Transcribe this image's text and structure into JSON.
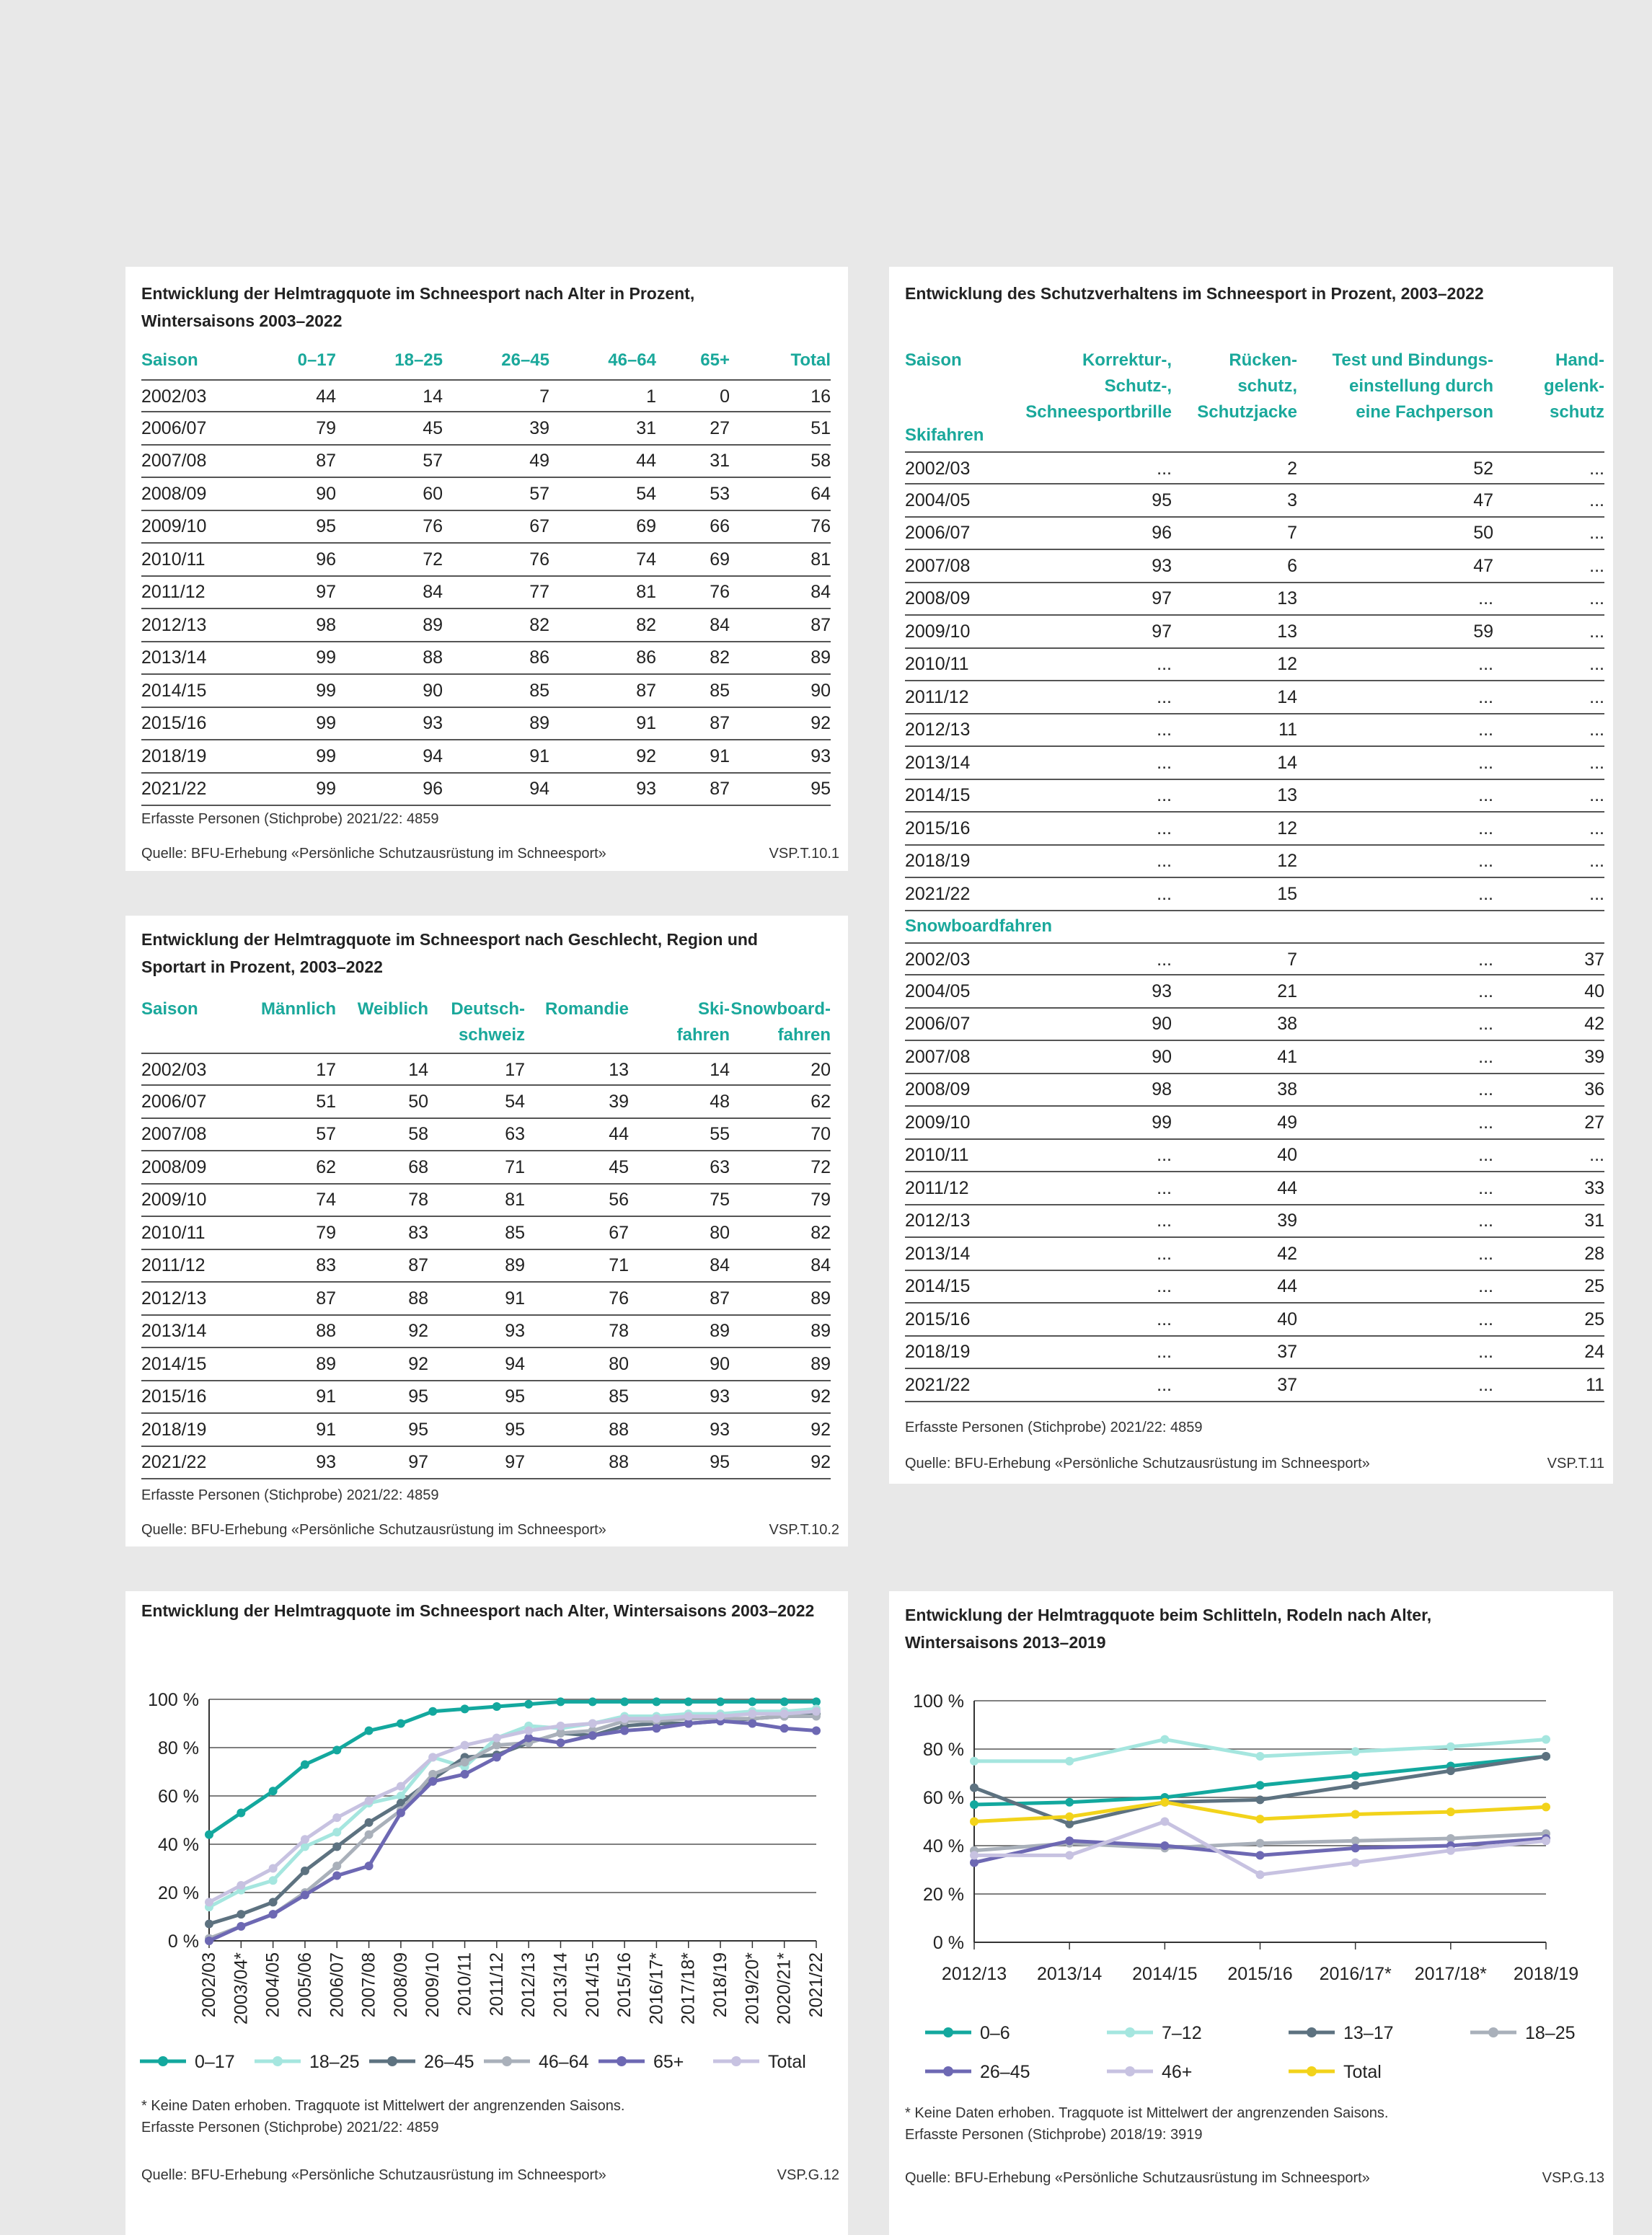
{
  "t101": {
    "title1": "Entwicklung der Helmtragquote im Schneesport nach Alter in Prozent,",
    "title2": "Wintersaisons 2003–2022",
    "headers": [
      "Saison",
      "0–17",
      "18–25",
      "26–45",
      "46–64",
      "65+",
      "Total"
    ],
    "rows": [
      [
        "2002/03",
        "44",
        "14",
        "7",
        "1",
        "0",
        "16"
      ],
      [
        "2006/07",
        "79",
        "45",
        "39",
        "31",
        "27",
        "51"
      ],
      [
        "2007/08",
        "87",
        "57",
        "49",
        "44",
        "31",
        "58"
      ],
      [
        "2008/09",
        "90",
        "60",
        "57",
        "54",
        "53",
        "64"
      ],
      [
        "2009/10",
        "95",
        "76",
        "67",
        "69",
        "66",
        "76"
      ],
      [
        "2010/11",
        "96",
        "72",
        "76",
        "74",
        "69",
        "81"
      ],
      [
        "2011/12",
        "97",
        "84",
        "77",
        "81",
        "76",
        "84"
      ],
      [
        "2012/13",
        "98",
        "89",
        "82",
        "82",
        "84",
        "87"
      ],
      [
        "2013/14",
        "99",
        "88",
        "86",
        "86",
        "82",
        "89"
      ],
      [
        "2014/15",
        "99",
        "90",
        "85",
        "87",
        "85",
        "90"
      ],
      [
        "2015/16",
        "99",
        "93",
        "89",
        "91",
        "87",
        "92"
      ],
      [
        "2018/19",
        "99",
        "94",
        "91",
        "92",
        "91",
        "93"
      ],
      [
        "2021/22",
        "99",
        "96",
        "94",
        "93",
        "87",
        "95"
      ]
    ],
    "note": "Erfasste Personen (Stichprobe) 2021/22: 4859",
    "source": "Quelle: BFU-Erhebung «Persönliche Schutzausrüstung im Schneesport»",
    "code": "VSP.T.10.1"
  },
  "t102": {
    "title1": "Entwicklung der Helmtragquote im Schneesport nach Geschlecht, Region und",
    "title2": "Sportart in Prozent, 2003–2022",
    "headers": [
      [
        "Saison"
      ],
      [
        "Männlich"
      ],
      [
        "Weiblich"
      ],
      [
        "Deutsch-",
        "schweiz"
      ],
      [
        "Romandie"
      ],
      [
        "Ski-",
        "fahren"
      ],
      [
        "Snowboard-",
        "fahren"
      ]
    ],
    "rows": [
      [
        "2002/03",
        "17",
        "14",
        "17",
        "13",
        "14",
        "20"
      ],
      [
        "2006/07",
        "51",
        "50",
        "54",
        "39",
        "48",
        "62"
      ],
      [
        "2007/08",
        "57",
        "58",
        "63",
        "44",
        "55",
        "70"
      ],
      [
        "2008/09",
        "62",
        "68",
        "71",
        "45",
        "63",
        "72"
      ],
      [
        "2009/10",
        "74",
        "78",
        "81",
        "56",
        "75",
        "79"
      ],
      [
        "2010/11",
        "79",
        "83",
        "85",
        "67",
        "80",
        "82"
      ],
      [
        "2011/12",
        "83",
        "87",
        "89",
        "71",
        "84",
        "84"
      ],
      [
        "2012/13",
        "87",
        "88",
        "91",
        "76",
        "87",
        "89"
      ],
      [
        "2013/14",
        "88",
        "92",
        "93",
        "78",
        "89",
        "89"
      ],
      [
        "2014/15",
        "89",
        "92",
        "94",
        "80",
        "90",
        "89"
      ],
      [
        "2015/16",
        "91",
        "95",
        "95",
        "85",
        "93",
        "92"
      ],
      [
        "2018/19",
        "91",
        "95",
        "95",
        "88",
        "93",
        "92"
      ],
      [
        "2021/22",
        "93",
        "97",
        "97",
        "88",
        "95",
        "92"
      ]
    ],
    "note": "Erfasste Personen (Stichprobe) 2021/22: 4859",
    "source": "Quelle: BFU-Erhebung «Persönliche Schutzausrüstung im Schneesport»",
    "code": "VSP.T.10.2"
  },
  "t11": {
    "title": "Entwicklung des Schutzverhaltens im Schneesport in Prozent, 2003–2022",
    "headers": [
      [
        "Saison"
      ],
      [
        "Korrektur-,",
        "Schutz-,",
        "Schneesportbrille"
      ],
      [
        "Rücken-",
        "schutz,",
        "Schutzjacke"
      ],
      [
        "Test und Bindungs-",
        "einstellung durch",
        "eine Fachperson"
      ],
      [
        "Hand-",
        "gelenk-",
        "schutz"
      ]
    ],
    "ski_label": "Skifahren",
    "ski_rows": [
      [
        "2002/03",
        "...",
        "2",
        "52",
        "..."
      ],
      [
        "2004/05",
        "95",
        "3",
        "47",
        "..."
      ],
      [
        "2006/07",
        "96",
        "7",
        "50",
        "..."
      ],
      [
        "2007/08",
        "93",
        "6",
        "47",
        "..."
      ],
      [
        "2008/09",
        "97",
        "13",
        "...",
        "..."
      ],
      [
        "2009/10",
        "97",
        "13",
        "59",
        "..."
      ],
      [
        "2010/11",
        "...",
        "12",
        "...",
        "..."
      ],
      [
        "2011/12",
        "...",
        "14",
        "...",
        "..."
      ],
      [
        "2012/13",
        "...",
        "11",
        "...",
        "..."
      ],
      [
        "2013/14",
        "...",
        "14",
        "...",
        "..."
      ],
      [
        "2014/15",
        "...",
        "13",
        "...",
        "..."
      ],
      [
        "2015/16",
        "...",
        "12",
        "...",
        "..."
      ],
      [
        "2018/19",
        "...",
        "12",
        "...",
        "..."
      ],
      [
        "2021/22",
        "...",
        "15",
        "...",
        "..."
      ]
    ],
    "snow_label": "Snowboardfahren",
    "snow_rows": [
      [
        "2002/03",
        "...",
        "7",
        "...",
        "37"
      ],
      [
        "2004/05",
        "93",
        "21",
        "...",
        "40"
      ],
      [
        "2006/07",
        "90",
        "38",
        "...",
        "42"
      ],
      [
        "2007/08",
        "90",
        "41",
        "...",
        "39"
      ],
      [
        "2008/09",
        "98",
        "38",
        "...",
        "36"
      ],
      [
        "2009/10",
        "99",
        "49",
        "...",
        "27"
      ],
      [
        "2010/11",
        "...",
        "40",
        "...",
        "..."
      ],
      [
        "2011/12",
        "...",
        "44",
        "...",
        "33"
      ],
      [
        "2012/13",
        "...",
        "39",
        "...",
        "31"
      ],
      [
        "2013/14",
        "...",
        "42",
        "...",
        "28"
      ],
      [
        "2014/15",
        "...",
        "44",
        "...",
        "25"
      ],
      [
        "2015/16",
        "...",
        "40",
        "...",
        "25"
      ],
      [
        "2018/19",
        "...",
        "37",
        "...",
        "24"
      ],
      [
        "2021/22",
        "...",
        "37",
        "...",
        "11"
      ]
    ],
    "note": "Erfasste Personen (Stichprobe) 2021/22: 4859",
    "source": "Quelle: BFU-Erhebung «Persönliche Schutzausrüstung im Schneesport»",
    "code": "VSP.T.11"
  },
  "g12": {
    "title": "Entwicklung der Helmtragquote im Schneesport nach Alter, Wintersaisons 2003–2022",
    "footnote": "*  Keine Daten erhoben. Tragquote ist Mittelwert der angrenzenden Saisons.",
    "note": "Erfasste Personen (Stichprobe) 2021/22: 4859",
    "source": "Quelle: BFU-Erhebung «Persönliche Schutzausrüstung im Schneesport»",
    "code": "VSP.G.12"
  },
  "g13": {
    "title1": "Entwicklung der Helmtragquote beim Schlitteln, Rodeln nach Alter,",
    "title2": "Wintersaisons 2013–2019",
    "footnote": "*  Keine Daten erhoben. Tragquote ist Mittelwert der angrenzenden Saisons.",
    "note": "Erfasste Personen (Stichprobe) 2018/19: 3919",
    "source": "Quelle: BFU-Erhebung «Persönliche Schutzausrüstung im Schneesport»",
    "code": "VSP.G.13"
  },
  "chart_data": [
    {
      "type": "line",
      "id": "g12",
      "x": [
        "2002/03",
        "2003/04*",
        "2004/05",
        "2005/06",
        "2006/07",
        "2007/08",
        "2008/09",
        "2009/10",
        "2010/11",
        "2011/12",
        "2012/13",
        "2013/14",
        "2014/15",
        "2015/16",
        "2016/17*",
        "2017/18*",
        "2018/19",
        "2019/20*",
        "2020/21*",
        "2021/22"
      ],
      "yticks": [
        "0 %",
        "20 %",
        "40 %",
        "60 %",
        "80 %",
        "100 %"
      ],
      "ylim": [
        0,
        100
      ],
      "grid": true,
      "legend": "bottom",
      "series": [
        {
          "name": "0–17",
          "color": "#13a89e",
          "values": [
            44,
            53,
            62,
            73,
            79,
            87,
            90,
            95,
            96,
            97,
            98,
            99,
            99,
            99,
            99,
            99,
            99,
            99,
            99,
            99
          ]
        },
        {
          "name": "18–25",
          "color": "#a5e6df",
          "values": [
            14,
            21,
            25,
            39,
            45,
            57,
            60,
            76,
            72,
            84,
            89,
            88,
            90,
            93,
            93,
            94,
            94,
            95,
            95,
            96
          ]
        },
        {
          "name": "26–45",
          "color": "#5d7280",
          "values": [
            7,
            11,
            16,
            29,
            39,
            49,
            57,
            67,
            76,
            77,
            82,
            86,
            85,
            89,
            90,
            90,
            91,
            92,
            93,
            94
          ]
        },
        {
          "name": "46–64",
          "color": "#a9b0ba",
          "values": [
            1,
            6,
            11,
            20,
            31,
            44,
            54,
            69,
            74,
            81,
            82,
            86,
            87,
            91,
            91,
            92,
            92,
            92,
            93,
            93
          ]
        },
        {
          "name": "65+",
          "color": "#6d68b3",
          "values": [
            0,
            6,
            11,
            19,
            27,
            31,
            53,
            66,
            69,
            76,
            84,
            82,
            85,
            87,
            88,
            90,
            91,
            90,
            88,
            87
          ]
        },
        {
          "name": "Total",
          "color": "#c7c2e1",
          "values": [
            16,
            23,
            30,
            42,
            51,
            58,
            64,
            76,
            81,
            84,
            87,
            89,
            90,
            92,
            92,
            93,
            93,
            94,
            94,
            95
          ]
        }
      ]
    },
    {
      "type": "line",
      "id": "g13",
      "x": [
        "2012/13",
        "2013/14",
        "2014/15",
        "2015/16",
        "2016/17*",
        "2017/18*",
        "2018/19"
      ],
      "yticks": [
        "0 %",
        "20 %",
        "40 %",
        "60 %",
        "80 %",
        "100 %"
      ],
      "ylim": [
        0,
        100
      ],
      "grid": true,
      "legend": "bottom",
      "series": [
        {
          "name": "0–6",
          "color": "#13a89e",
          "values": [
            57,
            58,
            60,
            65,
            69,
            73,
            77
          ]
        },
        {
          "name": "7–12",
          "color": "#a5e6df",
          "values": [
            75,
            75,
            84,
            77,
            79,
            81,
            84
          ]
        },
        {
          "name": "13–17",
          "color": "#5d7280",
          "values": [
            64,
            49,
            58,
            59,
            65,
            71,
            77
          ]
        },
        {
          "name": "18–25",
          "color": "#a9b0ba",
          "values": [
            38,
            41,
            39,
            41,
            42,
            43,
            45
          ]
        },
        {
          "name": "26–45",
          "color": "#6d68b3",
          "values": [
            33,
            42,
            40,
            36,
            39,
            40,
            43
          ]
        },
        {
          "name": "46+",
          "color": "#c7c2e1",
          "values": [
            36,
            36,
            50,
            28,
            33,
            38,
            42
          ]
        },
        {
          "name": "Total",
          "color": "#f2d31b",
          "values": [
            50,
            52,
            58,
            51,
            53,
            54,
            56
          ]
        }
      ]
    }
  ]
}
